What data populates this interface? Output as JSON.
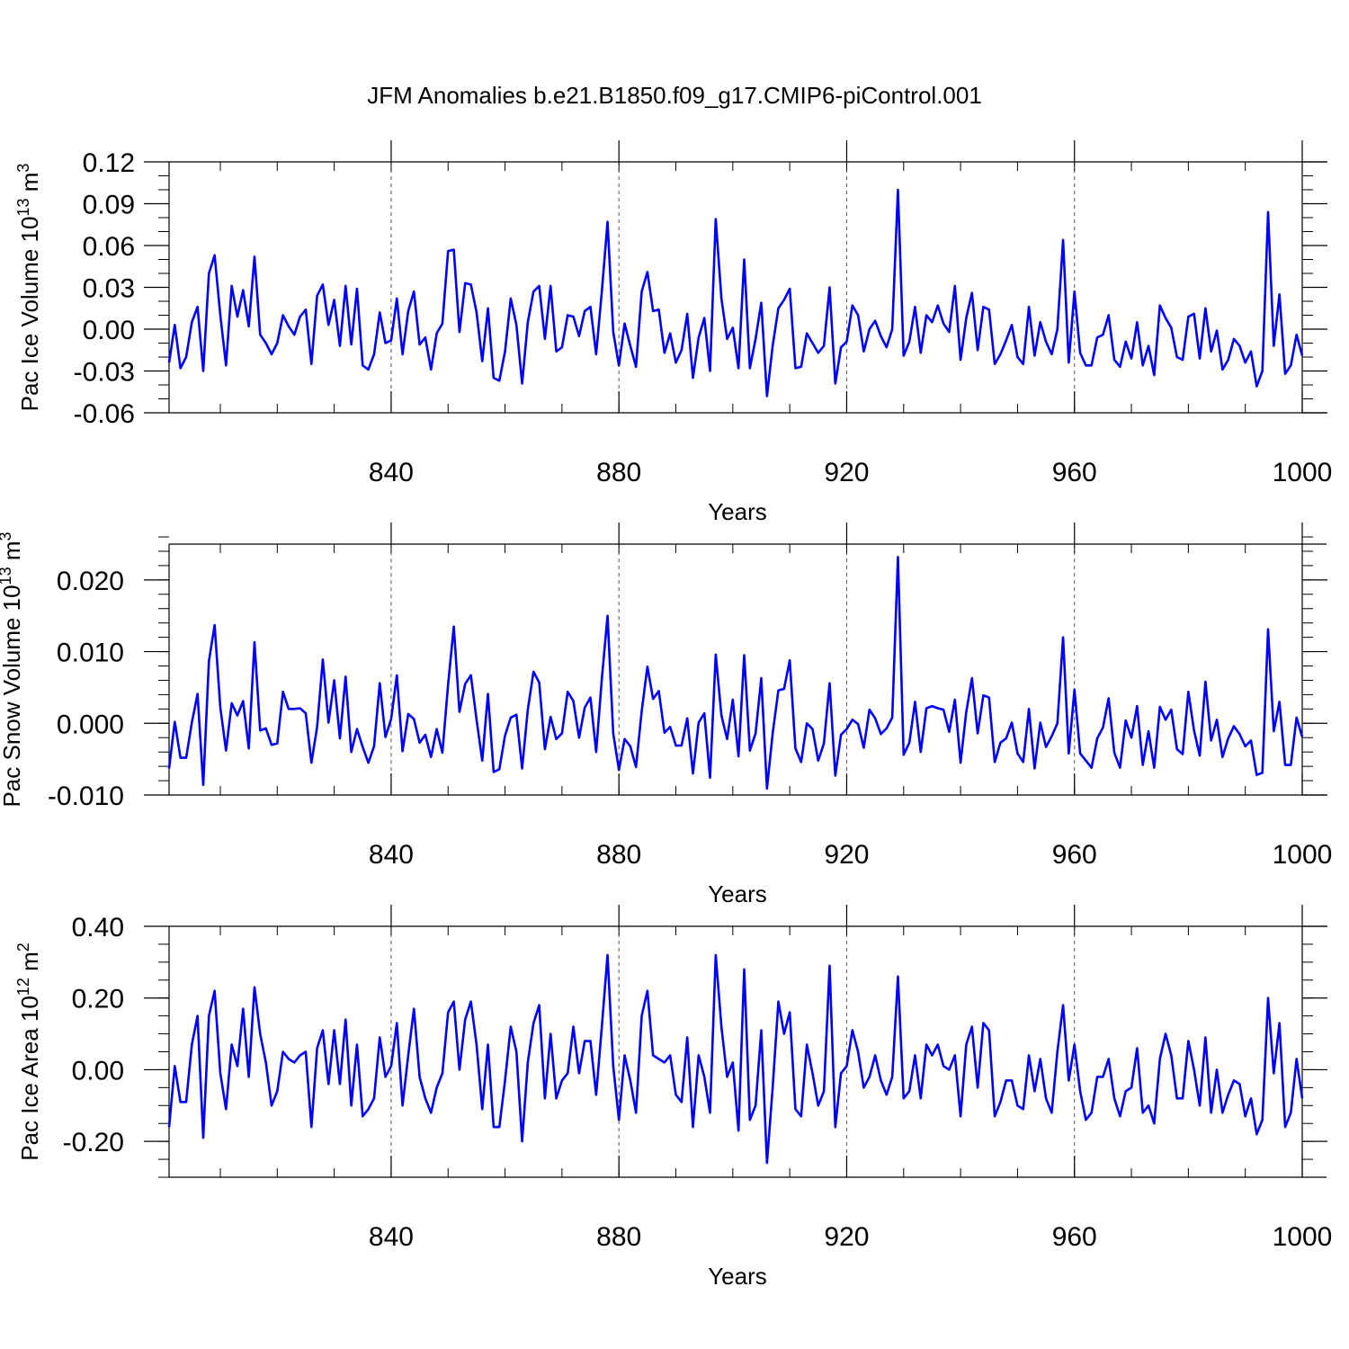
{
  "title": "JFM Anomalies b.e21.B1850.f09_g17.CMIP6-piControl.001",
  "line_color": "#0000ff",
  "chart_data": [
    {
      "type": "line",
      "title": "",
      "xlabel": "Years",
      "ylabel": "Pac Ice Volume",
      "ylabel_unit_base": "10",
      "ylabel_unit_exp": "13",
      "ylabel_unit": "m",
      "ylabel_unit_power": "3",
      "xlim": [
        801,
        1000
      ],
      "ylim": [
        -0.06,
        0.12
      ],
      "x_ticks": [
        840,
        880,
        920,
        960,
        1000
      ],
      "x_tick_labels": [
        "840",
        "880",
        "920",
        "960",
        "1000"
      ],
      "y_ticks": [
        -0.06,
        -0.03,
        0.0,
        0.03,
        0.06,
        0.09,
        0.12
      ],
      "y_tick_labels": [
        "-0.06",
        "-0.03",
        "0.00",
        "0.03",
        "0.06",
        "0.09",
        "0.12"
      ],
      "x_minor_step": 10,
      "y_minor_step": 0.01,
      "grid": "vertical dashed at major x ticks",
      "x_start": 801,
      "values": [
        -0.024,
        0.003,
        -0.028,
        -0.02,
        0.005,
        0.016,
        -0.03,
        0.04,
        0.053,
        0.01,
        -0.026,
        0.031,
        0.009,
        0.028,
        0.002,
        0.052,
        -0.004,
        -0.01,
        -0.018,
        -0.01,
        0.01,
        0.002,
        -0.004,
        0.009,
        0.014,
        -0.025,
        0.024,
        0.032,
        0.003,
        0.021,
        -0.012,
        0.031,
        -0.011,
        0.029,
        -0.026,
        -0.029,
        -0.018,
        0.012,
        -0.01,
        -0.008,
        0.022,
        -0.018,
        0.013,
        0.027,
        -0.011,
        -0.006,
        -0.029,
        -0.003,
        0.004,
        0.056,
        0.057,
        -0.002,
        0.033,
        0.032,
        0.012,
        -0.023,
        0.015,
        -0.035,
        -0.037,
        -0.016,
        0.022,
        0.003,
        -0.039,
        0.005,
        0.027,
        0.031,
        -0.007,
        0.031,
        -0.016,
        -0.013,
        0.01,
        0.009,
        -0.005,
        0.013,
        0.016,
        -0.018,
        0.027,
        0.077,
        -0.002,
        -0.026,
        0.004,
        -0.012,
        -0.027,
        0.027,
        0.041,
        0.013,
        0.014,
        -0.017,
        -0.003,
        -0.024,
        -0.015,
        0.011,
        -0.035,
        -0.006,
        0.008,
        -0.03,
        0.079,
        0.022,
        -0.007,
        0.001,
        -0.028,
        0.05,
        -0.028,
        -0.007,
        0.019,
        -0.048,
        -0.012,
        0.015,
        0.021,
        0.029,
        -0.028,
        -0.027,
        -0.003,
        -0.01,
        -0.017,
        -0.012,
        0.03,
        -0.039,
        -0.013,
        -0.009,
        0.017,
        0.01,
        -0.016,
        0.0,
        0.006,
        -0.005,
        -0.013,
        0.0,
        0.1,
        -0.019,
        -0.009,
        0.016,
        -0.017,
        0.01,
        0.005,
        0.017,
        0.004,
        -0.002,
        0.031,
        -0.022,
        0.008,
        0.026,
        -0.015,
        0.016,
        0.014,
        -0.025,
        -0.018,
        -0.008,
        0.003,
        -0.02,
        -0.025,
        0.016,
        -0.019,
        0.005,
        -0.009,
        -0.018,
        0.0,
        0.064,
        -0.024,
        0.027,
        -0.017,
        -0.026,
        -0.026,
        -0.006,
        -0.004,
        0.01,
        -0.022,
        -0.027,
        -0.009,
        -0.021,
        0.005,
        -0.026,
        -0.012,
        -0.033,
        0.017,
        0.008,
        0.001,
        -0.02,
        -0.022,
        0.009,
        0.011,
        -0.021,
        0.015,
        -0.016,
        -0.001,
        -0.029,
        -0.022,
        -0.007,
        -0.012,
        -0.024,
        -0.016,
        -0.041,
        -0.03,
        0.084,
        -0.012,
        0.025,
        -0.032,
        -0.026,
        -0.004,
        -0.019
      ]
    },
    {
      "type": "line",
      "title": "",
      "xlabel": "Years",
      "ylabel": "Pac Snow Volume",
      "ylabel_unit_base": "10",
      "ylabel_unit_exp": "13",
      "ylabel_unit": "m",
      "ylabel_unit_power": "3",
      "xlim": [
        801,
        1000
      ],
      "ylim": [
        -0.01,
        0.025
      ],
      "x_ticks": [
        840,
        880,
        920,
        960,
        1000
      ],
      "x_tick_labels": [
        "840",
        "880",
        "920",
        "960",
        "1000"
      ],
      "y_ticks": [
        -0.01,
        0.0,
        0.01,
        0.02
      ],
      "y_tick_labels": [
        "-0.010",
        "0.000",
        "0.010",
        "0.020"
      ],
      "x_minor_step": 10,
      "y_minor_step": 0.002,
      "grid": "vertical dashed at major x ticks",
      "x_start": 801,
      "values": [
        -0.0063,
        0.0002,
        -0.0048,
        -0.0048,
        0.0001,
        0.0041,
        -0.0086,
        0.0087,
        0.0137,
        0.0022,
        -0.0038,
        0.0028,
        0.0011,
        0.0031,
        -0.0035,
        0.0113,
        -0.001,
        -0.0007,
        -0.003,
        -0.0028,
        0.0044,
        0.002,
        0.002,
        0.0021,
        0.0014,
        -0.0055,
        -0.0005,
        0.0089,
        0.0001,
        0.006,
        -0.0021,
        0.0065,
        -0.004,
        -0.0008,
        -0.0033,
        -0.0055,
        -0.0032,
        0.0056,
        -0.0019,
        0.0006,
        0.0067,
        -0.0039,
        0.0013,
        0.0006,
        -0.0027,
        -0.0016,
        -0.0047,
        -0.0008,
        -0.0041,
        0.0054,
        0.0135,
        0.0016,
        0.0055,
        0.0067,
        0.0005,
        -0.0052,
        0.0041,
        -0.0068,
        -0.0064,
        -0.0017,
        0.0008,
        0.0012,
        -0.0063,
        0.0019,
        0.0072,
        0.0057,
        -0.0036,
        0.0009,
        -0.0022,
        -0.0014,
        0.0044,
        0.0031,
        -0.002,
        0.0022,
        0.0036,
        -0.004,
        0.0062,
        0.015,
        -0.0014,
        -0.0065,
        -0.0022,
        -0.0032,
        -0.0061,
        0.0017,
        0.0079,
        0.0034,
        0.0045,
        -0.0013,
        -0.0005,
        -0.0031,
        -0.0031,
        0.0007,
        -0.007,
        0.0001,
        0.0014,
        -0.0076,
        0.0096,
        0.0011,
        -0.0022,
        0.0033,
        -0.0046,
        0.0095,
        -0.0038,
        -0.0014,
        0.0063,
        -0.0091,
        -0.0014,
        0.0046,
        0.0048,
        0.0088,
        -0.0035,
        -0.0054,
        0.0,
        -0.0008,
        -0.0052,
        -0.0028,
        0.0056,
        -0.0073,
        -0.0016,
        -0.0008,
        0.0005,
        -0.0001,
        -0.0034,
        0.0019,
        0.0007,
        -0.0015,
        -0.0007,
        0.0008,
        0.0232,
        -0.0044,
        -0.0027,
        0.003,
        -0.004,
        0.0021,
        0.0024,
        0.0021,
        0.0019,
        -0.0012,
        0.0033,
        -0.0055,
        0.0016,
        0.0063,
        -0.0014,
        0.0039,
        0.0036,
        -0.0054,
        -0.0027,
        -0.0021,
        0.0001,
        -0.0042,
        -0.0054,
        0.002,
        -0.0063,
        0.0001,
        -0.0033,
        -0.0018,
        0.0,
        0.012,
        -0.0042,
        0.0047,
        -0.0042,
        -0.0052,
        -0.0062,
        -0.0021,
        -0.0006,
        0.0035,
        -0.0041,
        -0.0062,
        0.0004,
        -0.002,
        0.0024,
        -0.0058,
        -0.0011,
        -0.0062,
        0.0023,
        0.0005,
        0.0019,
        -0.0036,
        -0.0043,
        0.0044,
        -0.001,
        -0.0045,
        0.0058,
        -0.0024,
        0.0005,
        -0.0047,
        -0.0021,
        -0.0004,
        -0.0015,
        -0.0032,
        -0.0024,
        -0.0072,
        -0.0069,
        0.0131,
        -0.0011,
        0.003,
        -0.0058,
        -0.0058,
        0.0008,
        -0.0019
      ]
    },
    {
      "type": "line",
      "title": "",
      "xlabel": "Years",
      "ylabel": "Pac Ice Area",
      "ylabel_unit_base": "10",
      "ylabel_unit_exp": "12",
      "ylabel_unit": "m",
      "ylabel_unit_power": "2",
      "xlim": [
        801,
        1000
      ],
      "ylim": [
        -0.3,
        0.4
      ],
      "x_ticks": [
        840,
        880,
        920,
        960,
        1000
      ],
      "x_tick_labels": [
        "840",
        "880",
        "920",
        "960",
        "1000"
      ],
      "y_ticks": [
        -0.2,
        0.0,
        0.2,
        0.4
      ],
      "y_tick_labels": [
        "-0.20",
        "0.00",
        "0.20",
        "0.40"
      ],
      "x_minor_step": 10,
      "y_minor_step": 0.05,
      "grid": "vertical dashed at major x ticks",
      "x_start": 801,
      "values": [
        -0.16,
        0.01,
        -0.09,
        -0.09,
        0.07,
        0.15,
        -0.19,
        0.15,
        0.22,
        -0.01,
        -0.11,
        0.07,
        0.01,
        0.17,
        -0.02,
        0.23,
        0.1,
        0.02,
        -0.1,
        -0.06,
        0.05,
        0.03,
        0.02,
        0.04,
        0.05,
        -0.16,
        0.06,
        0.11,
        -0.04,
        0.11,
        -0.04,
        0.14,
        -0.1,
        0.07,
        -0.13,
        -0.11,
        -0.08,
        0.09,
        -0.02,
        0.01,
        0.13,
        -0.1,
        0.04,
        0.17,
        -0.02,
        -0.08,
        -0.12,
        -0.05,
        -0.01,
        0.16,
        0.19,
        0.0,
        0.14,
        0.19,
        0.07,
        -0.11,
        0.07,
        -0.16,
        -0.16,
        -0.03,
        0.12,
        0.05,
        -0.2,
        0.02,
        0.13,
        0.18,
        -0.08,
        0.1,
        -0.08,
        -0.03,
        -0.01,
        0.12,
        -0.01,
        0.08,
        0.08,
        -0.07,
        0.12,
        0.32,
        0.01,
        -0.14,
        0.04,
        -0.03,
        -0.12,
        0.15,
        0.22,
        0.04,
        0.03,
        0.02,
        0.04,
        -0.07,
        -0.09,
        0.09,
        -0.16,
        0.04,
        -0.02,
        -0.12,
        0.32,
        0.12,
        -0.02,
        0.02,
        -0.17,
        0.28,
        -0.14,
        -0.1,
        0.11,
        -0.26,
        -0.05,
        0.19,
        0.1,
        0.16,
        -0.11,
        -0.13,
        0.07,
        -0.01,
        -0.1,
        -0.06,
        0.29,
        -0.16,
        -0.01,
        0.01,
        0.11,
        0.05,
        -0.05,
        -0.02,
        0.04,
        -0.03,
        -0.07,
        -0.02,
        0.26,
        -0.08,
        -0.06,
        0.04,
        -0.08,
        0.07,
        0.04,
        0.07,
        0.01,
        0.0,
        0.04,
        -0.13,
        0.07,
        0.12,
        -0.05,
        0.13,
        0.11,
        -0.13,
        -0.09,
        -0.03,
        -0.03,
        -0.1,
        -0.11,
        0.04,
        -0.06,
        0.03,
        -0.08,
        -0.12,
        0.05,
        0.18,
        -0.03,
        0.07,
        -0.06,
        -0.14,
        -0.12,
        -0.02,
        -0.02,
        0.03,
        -0.08,
        -0.13,
        -0.06,
        -0.05,
        0.06,
        -0.12,
        -0.1,
        -0.15,
        0.03,
        0.1,
        0.04,
        -0.08,
        -0.08,
        0.08,
        0.0,
        -0.1,
        0.09,
        -0.12,
        0.0,
        -0.12,
        -0.07,
        -0.03,
        -0.04,
        -0.13,
        -0.08,
        -0.18,
        -0.14,
        0.2,
        -0.01,
        0.13,
        -0.16,
        -0.12,
        0.03,
        -0.08
      ]
    }
  ]
}
